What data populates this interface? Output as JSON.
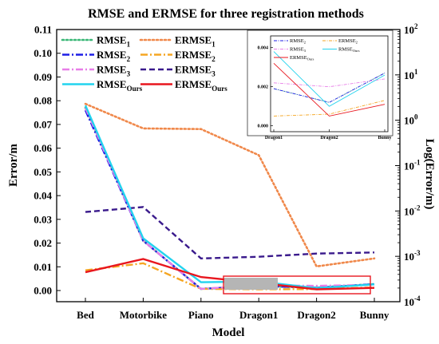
{
  "chart_data": {
    "type": "line",
    "title": "RMSE and ERMSE for three registration methods",
    "xlabel": "Model",
    "ylabel": "Error/m",
    "y2label": "Log(Error/m)",
    "categories": [
      "Bed",
      "Motorbike",
      "Piano",
      "Dragon1",
      "Dragon2",
      "Bunny"
    ],
    "ylim": [
      0,
      0.11
    ],
    "yticks": [
      "0.00",
      "0.01",
      "0.02",
      "0.03",
      "0.04",
      "0.05",
      "0.06",
      "0.07",
      "0.08",
      "0.09",
      "0.10",
      "0.11"
    ],
    "y2_scale": "log",
    "y2_ticks": [
      {
        "base": "10",
        "exp": "-4"
      },
      {
        "base": "10",
        "exp": "-3"
      },
      {
        "base": "10",
        "exp": "-2"
      },
      {
        "base": "10",
        "exp": "-1"
      },
      {
        "base": "10",
        "exp": "0"
      },
      {
        "base": "10",
        "exp": "1"
      },
      {
        "base": "10",
        "exp": "2"
      }
    ],
    "legend_placement": "top-left, two columns",
    "series": [
      {
        "name": "RMSE",
        "sub": "1",
        "axis": "left",
        "color": "#3cb878",
        "dash": "dot",
        "values": [
          0.077,
          0.021,
          0.0007,
          0.0019,
          0.0012,
          0.0027
        ]
      },
      {
        "name": "ERMSE",
        "sub": "1",
        "axis": "right",
        "color": "#f0884a",
        "dash": "dot",
        "values": [
          2.3,
          0.66,
          0.64,
          0.17,
          0.0006,
          0.0009
        ]
      },
      {
        "name": "RMSE",
        "sub": "2",
        "axis": "left",
        "color": "#1e1ee6",
        "dash": "dashdot",
        "values": [
          0.076,
          0.021,
          0.0007,
          0.0019,
          0.0012,
          0.0027
        ]
      },
      {
        "name": "ERMSE",
        "sub": "2",
        "axis": "left",
        "color": "#f5a623",
        "dash": "dashdot",
        "values": [
          0.0085,
          0.0115,
          0.0007,
          0.0005,
          0.0006,
          0.0013
        ]
      },
      {
        "name": "RMSE",
        "sub": "3",
        "axis": "left",
        "color": "#e87ee8",
        "dash": "dashdot",
        "values": [
          0.077,
          0.021,
          0.0007,
          0.0022,
          0.002,
          0.0024
        ]
      },
      {
        "name": "ERMSE",
        "sub": "3",
        "axis": "right",
        "color": "#3a1a8c",
        "dash": "dash",
        "values": [
          0.0095,
          0.0122,
          0.0009,
          0.00098,
          0.00115,
          0.00122
        ]
      },
      {
        "name": "RMSE",
        "sub": "Ours",
        "axis": "left",
        "color": "#22d3ee",
        "dash": "solid",
        "values": [
          0.078,
          0.022,
          0.0035,
          0.0038,
          0.001,
          0.0026
        ]
      },
      {
        "name": "ERMSE",
        "sub": "Ours",
        "axis": "left",
        "color": "#e8161e",
        "dash": "solid",
        "values": [
          0.0077,
          0.0133,
          0.0057,
          0.0032,
          0.0005,
          0.0011
        ]
      }
    ],
    "inset": {
      "categories": [
        "Dragon1",
        "Dragon2",
        "Bunny"
      ],
      "yticks": [
        "0.000",
        "0.002",
        "0.004"
      ],
      "ylim": [
        -0.0003,
        0.0046
      ]
    }
  }
}
